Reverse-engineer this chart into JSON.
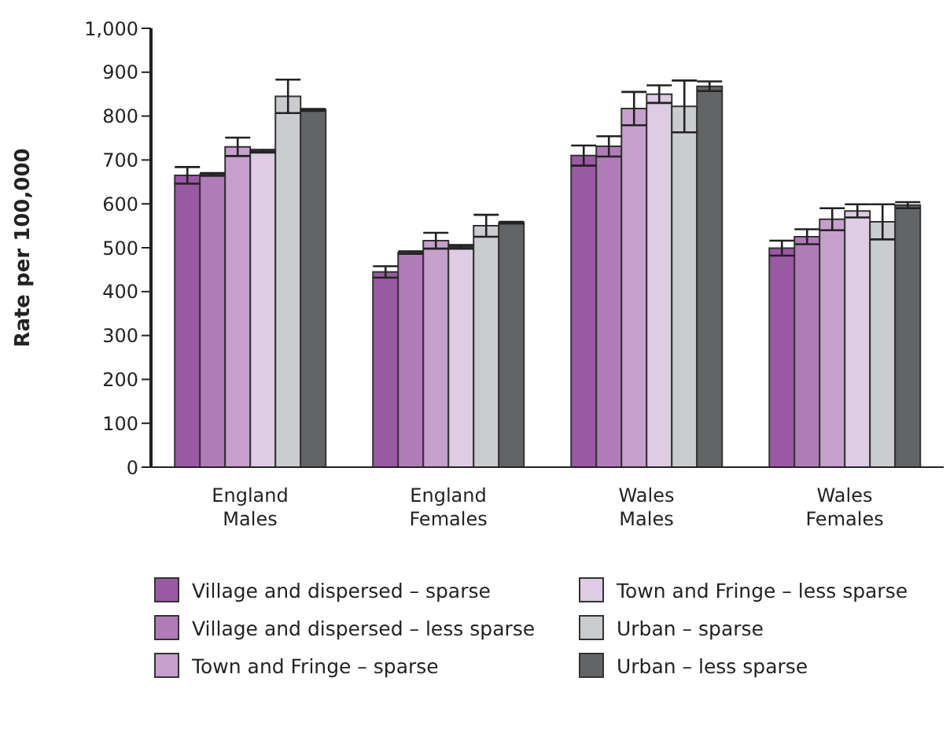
{
  "chart_data": {
    "type": "bar",
    "ylabel": "Rate per 100,000",
    "categories": [
      "England Males",
      "England Females",
      "Wales Males",
      "Wales Females"
    ],
    "series": [
      {
        "name": "Village and dispersed – sparse",
        "color": "#9b59a5",
        "values": [
          665,
          445,
          710,
          499
        ],
        "errors": [
          19,
          13,
          23,
          17
        ]
      },
      {
        "name": "Village and dispersed – less sparse",
        "color": "#b07cb8",
        "values": [
          667,
          489,
          731,
          525
        ],
        "errors": [
          3,
          3,
          23,
          17
        ]
      },
      {
        "name": "Town and Fringe – sparse",
        "color": "#c6a0cc",
        "values": [
          730,
          516,
          817,
          565
        ],
        "errors": [
          21,
          18,
          38,
          25
        ]
      },
      {
        "name": "Town and Fringe – less sparse",
        "color": "#ddcce3",
        "values": [
          720,
          502,
          850,
          584
        ],
        "errors": [
          3,
          4,
          20,
          15
        ]
      },
      {
        "name": "Urban – sparse",
        "color": "#cbcccf",
        "values": [
          845,
          550,
          822,
          559
        ],
        "errors": [
          38,
          25,
          59,
          40
        ]
      },
      {
        "name": "Urban – less sparse",
        "color": "#636466",
        "values": [
          814,
          557,
          868,
          597
        ],
        "errors": [
          2,
          2,
          11,
          7
        ]
      }
    ],
    "ylim": [
      0,
      1000
    ],
    "yticks": [
      0,
      100,
      200,
      300,
      400,
      500,
      600,
      700,
      800,
      900,
      {
        "value": 1000,
        "label": "1,000"
      }
    ],
    "grid": false,
    "legend": "bottom"
  }
}
